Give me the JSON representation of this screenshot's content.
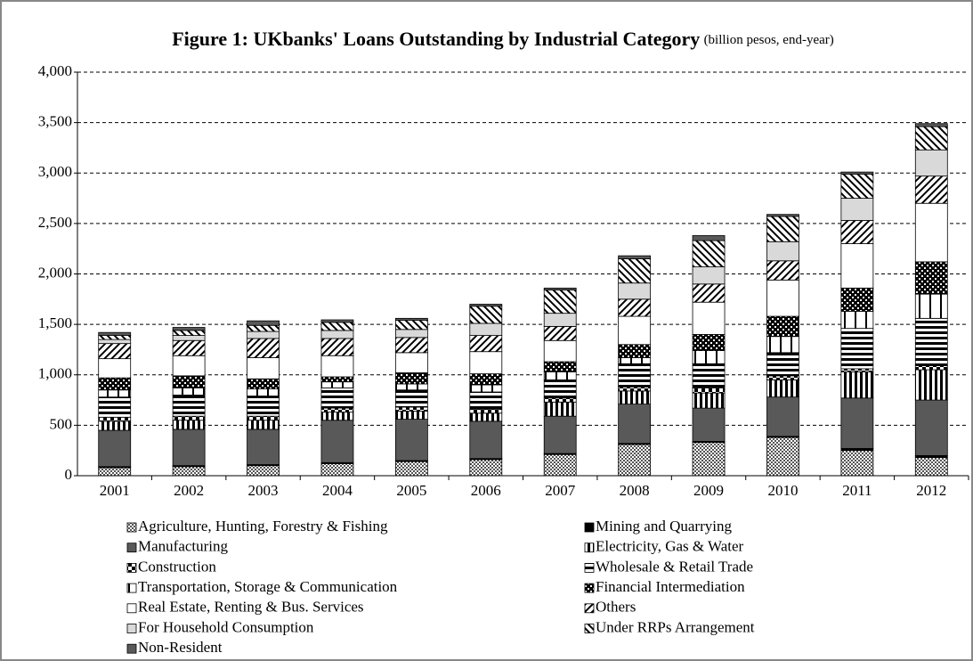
{
  "chart_data": {
    "type": "stacked_bar",
    "title": "Figure 1: UKbanks' Loans Outstanding by Industrial Category",
    "subtitle": "(billion pesos, end-year)",
    "categories": [
      "2001",
      "2002",
      "2003",
      "2004",
      "2005",
      "2006",
      "2007",
      "2008",
      "2009",
      "2010",
      "2011",
      "2012"
    ],
    "ylim": [
      0,
      4000
    ],
    "yticks": [
      0,
      500,
      {
        "value": 1000,
        "label": "1,000"
      },
      {
        "value": 1500,
        "label": "1,500"
      },
      {
        "value": 2000,
        "label": "2,000"
      },
      {
        "value": 2500,
        "label": "2,500"
      },
      {
        "value": 3000,
        "label": "3,000"
      },
      {
        "value": 3500,
        "label": "3,500"
      },
      {
        "value": 4000,
        "label": "4,000"
      }
    ],
    "grid": true,
    "series": [
      {
        "name": "Agriculture, Hunting, Forestry & Fishing",
        "color": "#7f7f7f",
        "pattern": "checker",
        "values": [
          80,
          90,
          100,
          120,
          140,
          160,
          210,
          310,
          330,
          380,
          250,
          180
        ]
      },
      {
        "name": "Mining and Quarrying",
        "color": "#000000",
        "pattern": "solid",
        "values": [
          10,
          10,
          10,
          10,
          10,
          10,
          10,
          10,
          10,
          10,
          20,
          20
        ]
      },
      {
        "name": "Manufacturing",
        "color": "#595959",
        "pattern": "solid",
        "values": [
          360,
          360,
          350,
          420,
          410,
          370,
          370,
          390,
          330,
          390,
          500,
          550
        ]
      },
      {
        "name": "Electricity, Gas & Water",
        "color": "#000000",
        "pattern": "vstripes",
        "values": [
          90,
          90,
          90,
          80,
          80,
          80,
          140,
          130,
          150,
          170,
          260,
          300
        ]
      },
      {
        "name": "Construction",
        "color": "#000000",
        "pattern": "bigcheck",
        "values": [
          40,
          40,
          40,
          40,
          40,
          40,
          40,
          40,
          50,
          40,
          30,
          40
        ]
      },
      {
        "name": "Wholesale & Retail Trade",
        "color": "#000000",
        "pattern": "hstripes",
        "values": [
          200,
          210,
          200,
          200,
          170,
          170,
          180,
          230,
          240,
          230,
          400,
          470
        ]
      },
      {
        "name": "Transportation, Storage & Communication",
        "color": "#000000",
        "pattern": "vlines",
        "values": [
          70,
          70,
          70,
          60,
          60,
          70,
          80,
          60,
          130,
          160,
          170,
          240
        ]
      },
      {
        "name": "Financial Intermediation",
        "color": "#000000",
        "pattern": "darkcheck",
        "values": [
          120,
          120,
          100,
          50,
          110,
          110,
          100,
          130,
          160,
          200,
          230,
          320
        ]
      },
      {
        "name": "Real Estate, Renting & Bus. Services",
        "color": "#ffffff",
        "pattern": "solid",
        "values": [
          190,
          200,
          210,
          210,
          200,
          220,
          210,
          280,
          320,
          360,
          440,
          580
        ]
      },
      {
        "name": "Others",
        "color": "#000000",
        "pattern": "diag",
        "values": [
          150,
          150,
          190,
          170,
          150,
          160,
          140,
          170,
          180,
          190,
          230,
          270
        ]
      },
      {
        "name": "For Household Consumption",
        "color": "#d9d9d9",
        "pattern": "solid",
        "values": [
          40,
          50,
          70,
          80,
          80,
          120,
          130,
          160,
          170,
          190,
          220,
          260
        ]
      },
      {
        "name": "Under RRPs Arrangement",
        "color": "#000000",
        "pattern": "diag2",
        "values": [
          40,
          50,
          60,
          80,
          90,
          170,
          230,
          240,
          260,
          250,
          240,
          230
        ]
      },
      {
        "name": "Non-Resident",
        "color": "#595959",
        "pattern": "solid",
        "values": [
          30,
          30,
          45,
          25,
          20,
          20,
          20,
          30,
          50,
          20,
          20,
          30
        ]
      }
    ]
  }
}
